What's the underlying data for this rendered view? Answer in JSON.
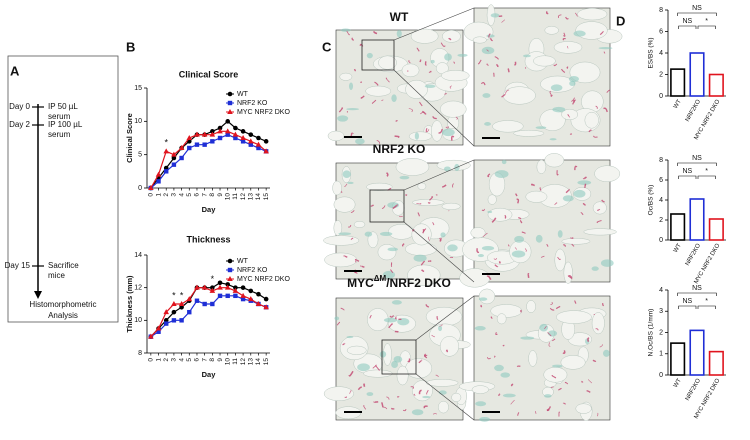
{
  "panel_labels": [
    "A",
    "B",
    "C",
    "D"
  ],
  "timeline": {
    "events": [
      {
        "day": "Day 0",
        "lines": [
          "IP 50 µL",
          "serum"
        ]
      },
      {
        "day": "Day 2",
        "lines": [
          "IP 100 µL",
          "serum"
        ]
      },
      {
        "day": "Day 15",
        "lines": [
          "Sacrifice",
          "mice"
        ]
      }
    ],
    "outcome": [
      "Histomorphometric",
      "Analysis"
    ]
  },
  "histology": {
    "rows": [
      {
        "label": "WT"
      },
      {
        "label": "NRF2 KO"
      },
      {
        "label": "MYC",
        "label_sup": "ΔM",
        "label_rest": "/NRF2 DKO"
      }
    ]
  },
  "chart_data": [
    {
      "type": "line",
      "title": "Clinical Score",
      "y_label": "Clinical Score",
      "x_label": "Day",
      "x": [
        0,
        1,
        2,
        3,
        4,
        5,
        6,
        7,
        8,
        9,
        10,
        11,
        12,
        13,
        14,
        15
      ],
      "xticks": [
        0,
        1,
        2,
        3,
        4,
        5,
        6,
        7,
        8,
        9,
        10,
        11,
        12,
        13,
        14,
        15
      ],
      "xlim": [
        -0.5,
        15.5
      ],
      "ylim": [
        0,
        15
      ],
      "yticks": [
        0,
        5,
        10,
        15
      ],
      "legend": "upper right",
      "series": [
        {
          "name": "WT",
          "color": "#000000",
          "marker": "circle",
          "values": [
            0,
            1.5,
            3,
            4.5,
            6,
            7,
            8,
            8,
            8.5,
            9,
            10,
            9,
            8.5,
            8,
            7.5,
            7
          ]
        },
        {
          "name": "NRF2 KO",
          "color": "#1f2fd6",
          "marker": "square",
          "values": [
            0,
            1,
            2.5,
            3.5,
            4.5,
            6,
            6.5,
            6.5,
            7,
            7.5,
            8,
            7.5,
            7,
            6.5,
            6,
            5.5
          ]
        },
        {
          "name": "MYC NRF2 DKO",
          "color": "#e0141e",
          "marker": "triangle",
          "values": [
            0,
            2,
            5.5,
            5,
            6,
            7.5,
            8,
            8,
            8,
            8.5,
            8.5,
            8,
            7.5,
            7,
            6.5,
            5.5
          ]
        }
      ],
      "annotations": [
        {
          "x": 2,
          "text": "*"
        }
      ]
    },
    {
      "type": "line",
      "title": "Thickness",
      "y_label": "Thickness (mm)",
      "x_label": "Day",
      "x": [
        0,
        1,
        2,
        3,
        4,
        5,
        6,
        7,
        8,
        9,
        10,
        11,
        12,
        13,
        14,
        15
      ],
      "xticks": [
        0,
        1,
        2,
        3,
        4,
        5,
        6,
        7,
        8,
        9,
        10,
        11,
        12,
        13,
        14,
        15
      ],
      "xlim": [
        -0.5,
        15.5
      ],
      "ylim": [
        8,
        14
      ],
      "yticks": [
        8,
        10,
        12,
        14
      ],
      "legend": "upper right",
      "series": [
        {
          "name": "WT",
          "color": "#000000",
          "marker": "circle",
          "values": [
            9,
            9.5,
            10,
            10.5,
            10.8,
            11.2,
            12,
            12,
            12,
            12.3,
            12.2,
            12,
            12,
            11.8,
            11.6,
            11.3
          ]
        },
        {
          "name": "NRF2 KO",
          "color": "#1f2fd6",
          "marker": "square",
          "values": [
            9,
            9.3,
            9.8,
            10,
            10,
            10.5,
            11.2,
            11,
            11,
            11.5,
            11.5,
            11.5,
            11.3,
            11.2,
            11,
            10.8
          ]
        },
        {
          "name": "MYC NRF2 DKO",
          "color": "#e0141e",
          "marker": "triangle",
          "values": [
            9,
            9.5,
            10.5,
            11,
            11,
            11.3,
            12,
            12,
            11.8,
            12,
            12,
            11.8,
            11.5,
            11.3,
            11,
            10.8
          ]
        }
      ],
      "annotations": [
        {
          "x": 3,
          "text": "*"
        },
        {
          "x": 4,
          "text": "*"
        },
        {
          "x": 8,
          "text": "*"
        }
      ]
    },
    {
      "type": "bar",
      "y_label": "ES/BS (%)",
      "categories": [
        "WT",
        "NRF2KO",
        "MYC NRF2 DKO"
      ],
      "values": [
        2.5,
        4.0,
        2.0
      ],
      "colors": [
        "#000000",
        "#1f2fd6",
        "#e0141e"
      ],
      "ylim": [
        0,
        8
      ],
      "yticks": [
        0,
        2,
        4,
        6,
        8
      ],
      "comparisons": [
        {
          "between": [
            0,
            2
          ],
          "text": "NS"
        },
        {
          "between": [
            0,
            1
          ],
          "text": "NS"
        },
        {
          "between": [
            1,
            2
          ],
          "text": "*"
        }
      ]
    },
    {
      "type": "bar",
      "y_label": "Oc/BS (%)",
      "categories": [
        "WT",
        "NRF2KO",
        "MYC NRF2 DKO"
      ],
      "values": [
        2.6,
        4.1,
        2.1
      ],
      "colors": [
        "#000000",
        "#1f2fd6",
        "#e0141e"
      ],
      "ylim": [
        0,
        8
      ],
      "yticks": [
        0,
        2,
        4,
        6,
        8
      ],
      "comparisons": [
        {
          "between": [
            0,
            2
          ],
          "text": "NS"
        },
        {
          "between": [
            0,
            1
          ],
          "text": "NS"
        },
        {
          "between": [
            1,
            2
          ],
          "text": "*"
        }
      ]
    },
    {
      "type": "bar",
      "y_label": "N.Oc/BS (1/mm)",
      "categories": [
        "WT",
        "NRF2KO",
        "MYC NRF2 DKO"
      ],
      "values": [
        1.5,
        2.1,
        1.1
      ],
      "colors": [
        "#000000",
        "#1f2fd6",
        "#e0141e"
      ],
      "ylim": [
        0,
        4
      ],
      "yticks": [
        0,
        1,
        2,
        3,
        4
      ],
      "comparisons": [
        {
          "between": [
            0,
            2
          ],
          "text": "NS"
        },
        {
          "between": [
            0,
            1
          ],
          "text": "NS"
        },
        {
          "between": [
            1,
            2
          ],
          "text": "*"
        }
      ]
    }
  ]
}
